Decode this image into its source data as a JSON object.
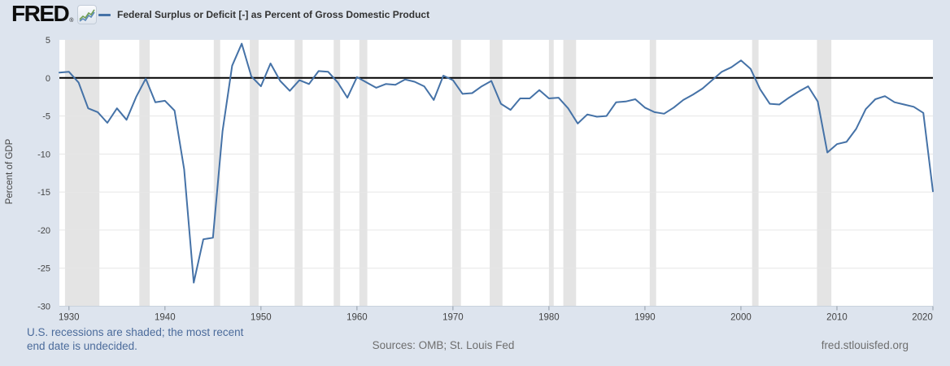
{
  "header": {
    "logo_text": "FRED",
    "registered_mark": "®",
    "legend": {
      "label": "Federal Surplus or Deficit [-] as Percent of Gross Domestic Product"
    }
  },
  "footer": {
    "recession_note_line1": "U.S. recessions are shaded; the most recent",
    "recession_note_line2": "end date is undecided.",
    "sources": "Sources: OMB; St. Louis Fed",
    "site": "fred.stlouisfed.org"
  },
  "colors": {
    "line": "#4572a7",
    "page_background": "#dde4ee",
    "plot_background": "#ffffff",
    "recession_band": "#e4e4e4",
    "gridline": "#e6e6e6",
    "zero_line": "#000000",
    "axis_line": "#c9d2dd",
    "tick_mark": "#8f9aa6",
    "tick_text": "#444444",
    "note_blue": "#4b6b9b",
    "footer_gray": "#6e6e6e",
    "logo_icon_green": "#6f9e53",
    "logo_icon_blue": "#5b87b7"
  },
  "chart_data": {
    "type": "line",
    "title": "Federal Surplus or Deficit [-] as Percent of Gross Domestic Product",
    "xlabel": "",
    "ylabel": "Percent of GDP",
    "xlim": [
      1929,
      2020
    ],
    "ylim": [
      -30,
      5
    ],
    "yticks": [
      5,
      0,
      -5,
      -10,
      -15,
      -20,
      -25,
      -30
    ],
    "xticks": [
      1930,
      1940,
      1950,
      1960,
      1970,
      1980,
      1990,
      2000,
      2010,
      2020
    ],
    "grid": "horizontal",
    "legend_position": "top-header",
    "recession_note": "U.S. recessions are shaded; the most recent end date is undecided.",
    "series": [
      {
        "name": "Federal Surplus or Deficit [-] as Percent of Gross Domestic Product",
        "x": [
          1929,
          1930,
          1931,
          1932,
          1933,
          1934,
          1935,
          1936,
          1937,
          1938,
          1939,
          1940,
          1941,
          1942,
          1943,
          1944,
          1945,
          1946,
          1947,
          1948,
          1949,
          1950,
          1951,
          1952,
          1953,
          1954,
          1955,
          1956,
          1957,
          1958,
          1959,
          1960,
          1961,
          1962,
          1963,
          1964,
          1965,
          1966,
          1967,
          1968,
          1969,
          1970,
          1971,
          1972,
          1973,
          1974,
          1975,
          1976,
          1977,
          1978,
          1979,
          1980,
          1981,
          1982,
          1983,
          1984,
          1985,
          1986,
          1987,
          1988,
          1989,
          1990,
          1991,
          1992,
          1993,
          1994,
          1995,
          1996,
          1997,
          1998,
          1999,
          2000,
          2001,
          2002,
          2003,
          2004,
          2005,
          2006,
          2007,
          2008,
          2009,
          2010,
          2011,
          2012,
          2013,
          2014,
          2015,
          2016,
          2017,
          2018,
          2019,
          2020
        ],
        "values": [
          0.7,
          0.8,
          -0.6,
          -4.0,
          -4.5,
          -5.9,
          -4.0,
          -5.5,
          -2.5,
          -0.1,
          -3.2,
          -3.0,
          -4.3,
          -12.0,
          -26.9,
          -21.2,
          -21.0,
          -7.0,
          1.6,
          4.5,
          0.2,
          -1.1,
          1.9,
          -0.4,
          -1.7,
          -0.3,
          -0.8,
          0.9,
          0.8,
          -0.6,
          -2.6,
          0.1,
          -0.6,
          -1.3,
          -0.8,
          -0.9,
          -0.2,
          -0.5,
          -1.1,
          -2.9,
          0.3,
          -0.3,
          -2.1,
          -2.0,
          -1.1,
          -0.4,
          -3.4,
          -4.2,
          -2.7,
          -2.7,
          -1.6,
          -2.7,
          -2.6,
          -4.0,
          -6.0,
          -4.8,
          -5.1,
          -5.0,
          -3.2,
          -3.1,
          -2.8,
          -3.9,
          -4.5,
          -4.7,
          -3.9,
          -2.9,
          -2.2,
          -1.4,
          -0.3,
          0.8,
          1.4,
          2.3,
          1.2,
          -1.5,
          -3.4,
          -3.5,
          -2.6,
          -1.8,
          -1.1,
          -3.1,
          -9.8,
          -8.7,
          -8.4,
          -6.7,
          -4.1,
          -2.8,
          -2.4,
          -3.2,
          -3.5,
          -3.8,
          -4.6,
          -14.9
        ]
      }
    ],
    "recessions": [
      {
        "start": 1929.583,
        "end": 1933.167
      },
      {
        "start": 1937.333,
        "end": 1938.417
      },
      {
        "start": 1945.083,
        "end": 1945.75
      },
      {
        "start": 1948.833,
        "end": 1949.75
      },
      {
        "start": 1953.5,
        "end": 1954.333
      },
      {
        "start": 1957.583,
        "end": 1958.25
      },
      {
        "start": 1960.25,
        "end": 1961.083
      },
      {
        "start": 1969.917,
        "end": 1970.833
      },
      {
        "start": 1973.833,
        "end": 1975.167
      },
      {
        "start": 1980.0,
        "end": 1980.5
      },
      {
        "start": 1981.5,
        "end": 1982.833
      },
      {
        "start": 1990.5,
        "end": 1991.167
      },
      {
        "start": 2001.167,
        "end": 2001.833
      },
      {
        "start": 2007.917,
        "end": 2009.417
      }
    ]
  }
}
